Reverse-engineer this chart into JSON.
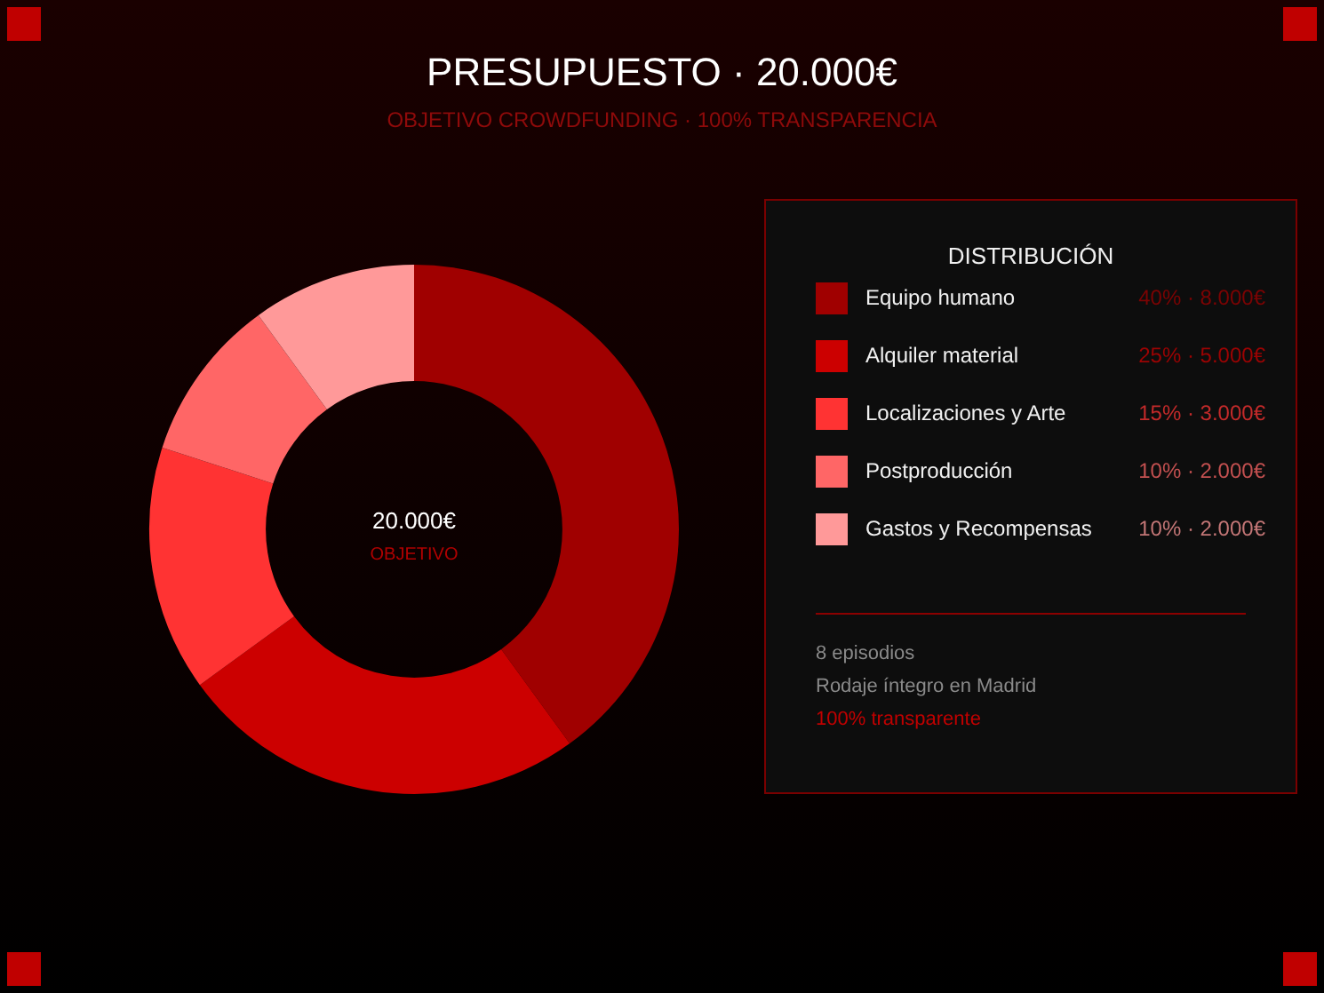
{
  "chart_data": {
    "type": "donut",
    "title": "PRESUPUESTO · 20.000€",
    "subtitle": "OBJETIVO CROWDFUNDING · 100% TRANSPARENCIA",
    "legend_title": "DISTRIBUCIÓN",
    "categories": [
      "Equipo humano",
      "Alquiler material",
      "Localizaciones y Arte",
      "Postproducción",
      "Gastos y Recompensas"
    ],
    "values": [
      40,
      25,
      15,
      10,
      10
    ],
    "colors": [
      "#a00000",
      "#cc0000",
      "#ff3333",
      "#ff6666",
      "#ff9999"
    ],
    "value_labels": [
      "40% · 8.000€",
      "25% · 5.000€",
      "15% · 3.000€",
      "10% · 2.000€",
      "10% · 2.000€"
    ],
    "legend": "right",
    "annotations": [
      "20.000€",
      "OBJETIVO",
      "8 episodios",
      "Rodaje íntegro en Madrid",
      "100% transparente"
    ]
  }
}
